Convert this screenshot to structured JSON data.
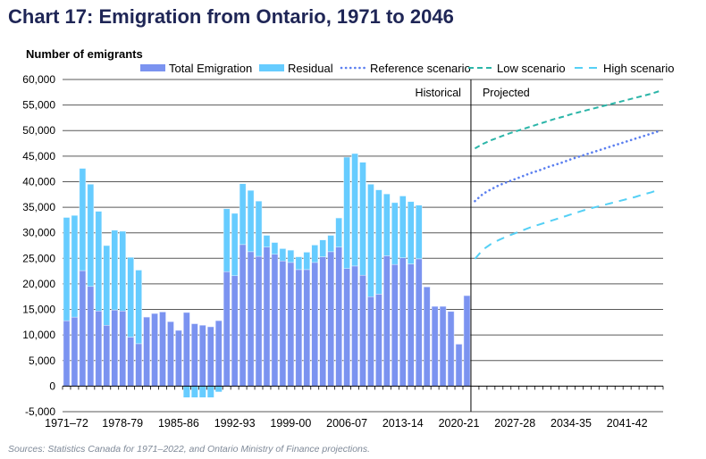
{
  "chart_data": {
    "type": "bar",
    "title": "Chart 17: Emigration from Ontario, 1971 to 2046",
    "ylabel": "Number of emigrants",
    "xlabel": "",
    "ylim": [
      -5000,
      60000
    ],
    "yticks": [
      "-5,000",
      "0",
      "5,000",
      "10,000",
      "15,000",
      "20,000",
      "25,000",
      "30,000",
      "35,000",
      "40,000",
      "45,000",
      "50,000",
      "55,000",
      "60,000"
    ],
    "grid": true,
    "legend_position": "top",
    "first_year": 1971,
    "xtick_labels": [
      "1971–72",
      "1978-79",
      "1985-86",
      "1992-93",
      "1999-00",
      "2006-07",
      "2013-14",
      "2020-21",
      "2027-28",
      "2034-35",
      "2041-42"
    ],
    "region_labels": {
      "historical": "Historical",
      "projected": "Projected"
    },
    "categories_note_span": "1971-72 to 2045-46",
    "series": [
      {
        "name": "Total Emigration",
        "kind": "stacked-bar",
        "color": "#7b93f0",
        "start": "1971-72",
        "values": [
          12800,
          13500,
          22600,
          19500,
          14700,
          11900,
          14900,
          14700,
          9600,
          8300,
          13500,
          14200,
          14500,
          12600,
          10900,
          14400,
          12200,
          11900,
          11600,
          12800,
          22400,
          21600,
          27700,
          26300,
          25400,
          27200,
          25800,
          24500,
          24200,
          22800,
          22800,
          24200,
          25300,
          26300,
          27200,
          23000,
          23500,
          21700,
          17500,
          18000,
          25500,
          23800,
          25100,
          23900,
          24900,
          19400,
          15600,
          15600,
          14600,
          8200,
          17700
        ]
      },
      {
        "name": "Residual",
        "kind": "stacked-bar",
        "color": "#66ccff",
        "start": "1971-72",
        "values": [
          20200,
          19900,
          20000,
          20000,
          19500,
          15600,
          15600,
          15600,
          15600,
          14400,
          0,
          0,
          0,
          0,
          0,
          -2200,
          -2200,
          -2200,
          -2200,
          -1100,
          12300,
          12200,
          11900,
          12000,
          10800,
          2300,
          2300,
          2400,
          2400,
          2500,
          3400,
          3400,
          3300,
          3200,
          5700,
          21800,
          22000,
          22100,
          22000,
          20400,
          12100,
          12100,
          12100,
          12200,
          10500,
          0,
          0,
          0,
          0,
          0,
          0
        ]
      },
      {
        "name": "Reference scenario",
        "kind": "line",
        "style": "dotted",
        "color": "#5b7ff0",
        "start": "2022-23",
        "values": [
          36200,
          37600,
          38500,
          39300,
          39900,
          40500,
          41100,
          41700,
          42200,
          42800,
          43300,
          43800,
          44400,
          44900,
          45400,
          45900,
          46400,
          46900,
          47400,
          47900,
          48400,
          48900,
          49400,
          49900
        ]
      },
      {
        "name": "Low scenario",
        "kind": "line",
        "style": "dashed",
        "color": "#2bb5a8",
        "start": "2022-23",
        "values": [
          46500,
          47400,
          48100,
          48700,
          49300,
          49800,
          50300,
          50800,
          51300,
          51800,
          52300,
          52700,
          53200,
          53600,
          54000,
          54400,
          54800,
          55200,
          55600,
          56000,
          56400,
          56800,
          57200,
          57700
        ]
      },
      {
        "name": "High scenario",
        "kind": "line",
        "style": "long-dashed",
        "color": "#55d0f5",
        "start": "2022-23",
        "values": [
          24900,
          26700,
          27800,
          28600,
          29300,
          29900,
          30500,
          31100,
          31600,
          32100,
          32600,
          33100,
          33600,
          34100,
          34600,
          35000,
          35400,
          35800,
          36200,
          36600,
          37000,
          37500,
          37900,
          38500
        ]
      }
    ]
  },
  "source": "Sources: Statistics Canada for 1971–2022, and Ontario Ministry of Finance projections."
}
